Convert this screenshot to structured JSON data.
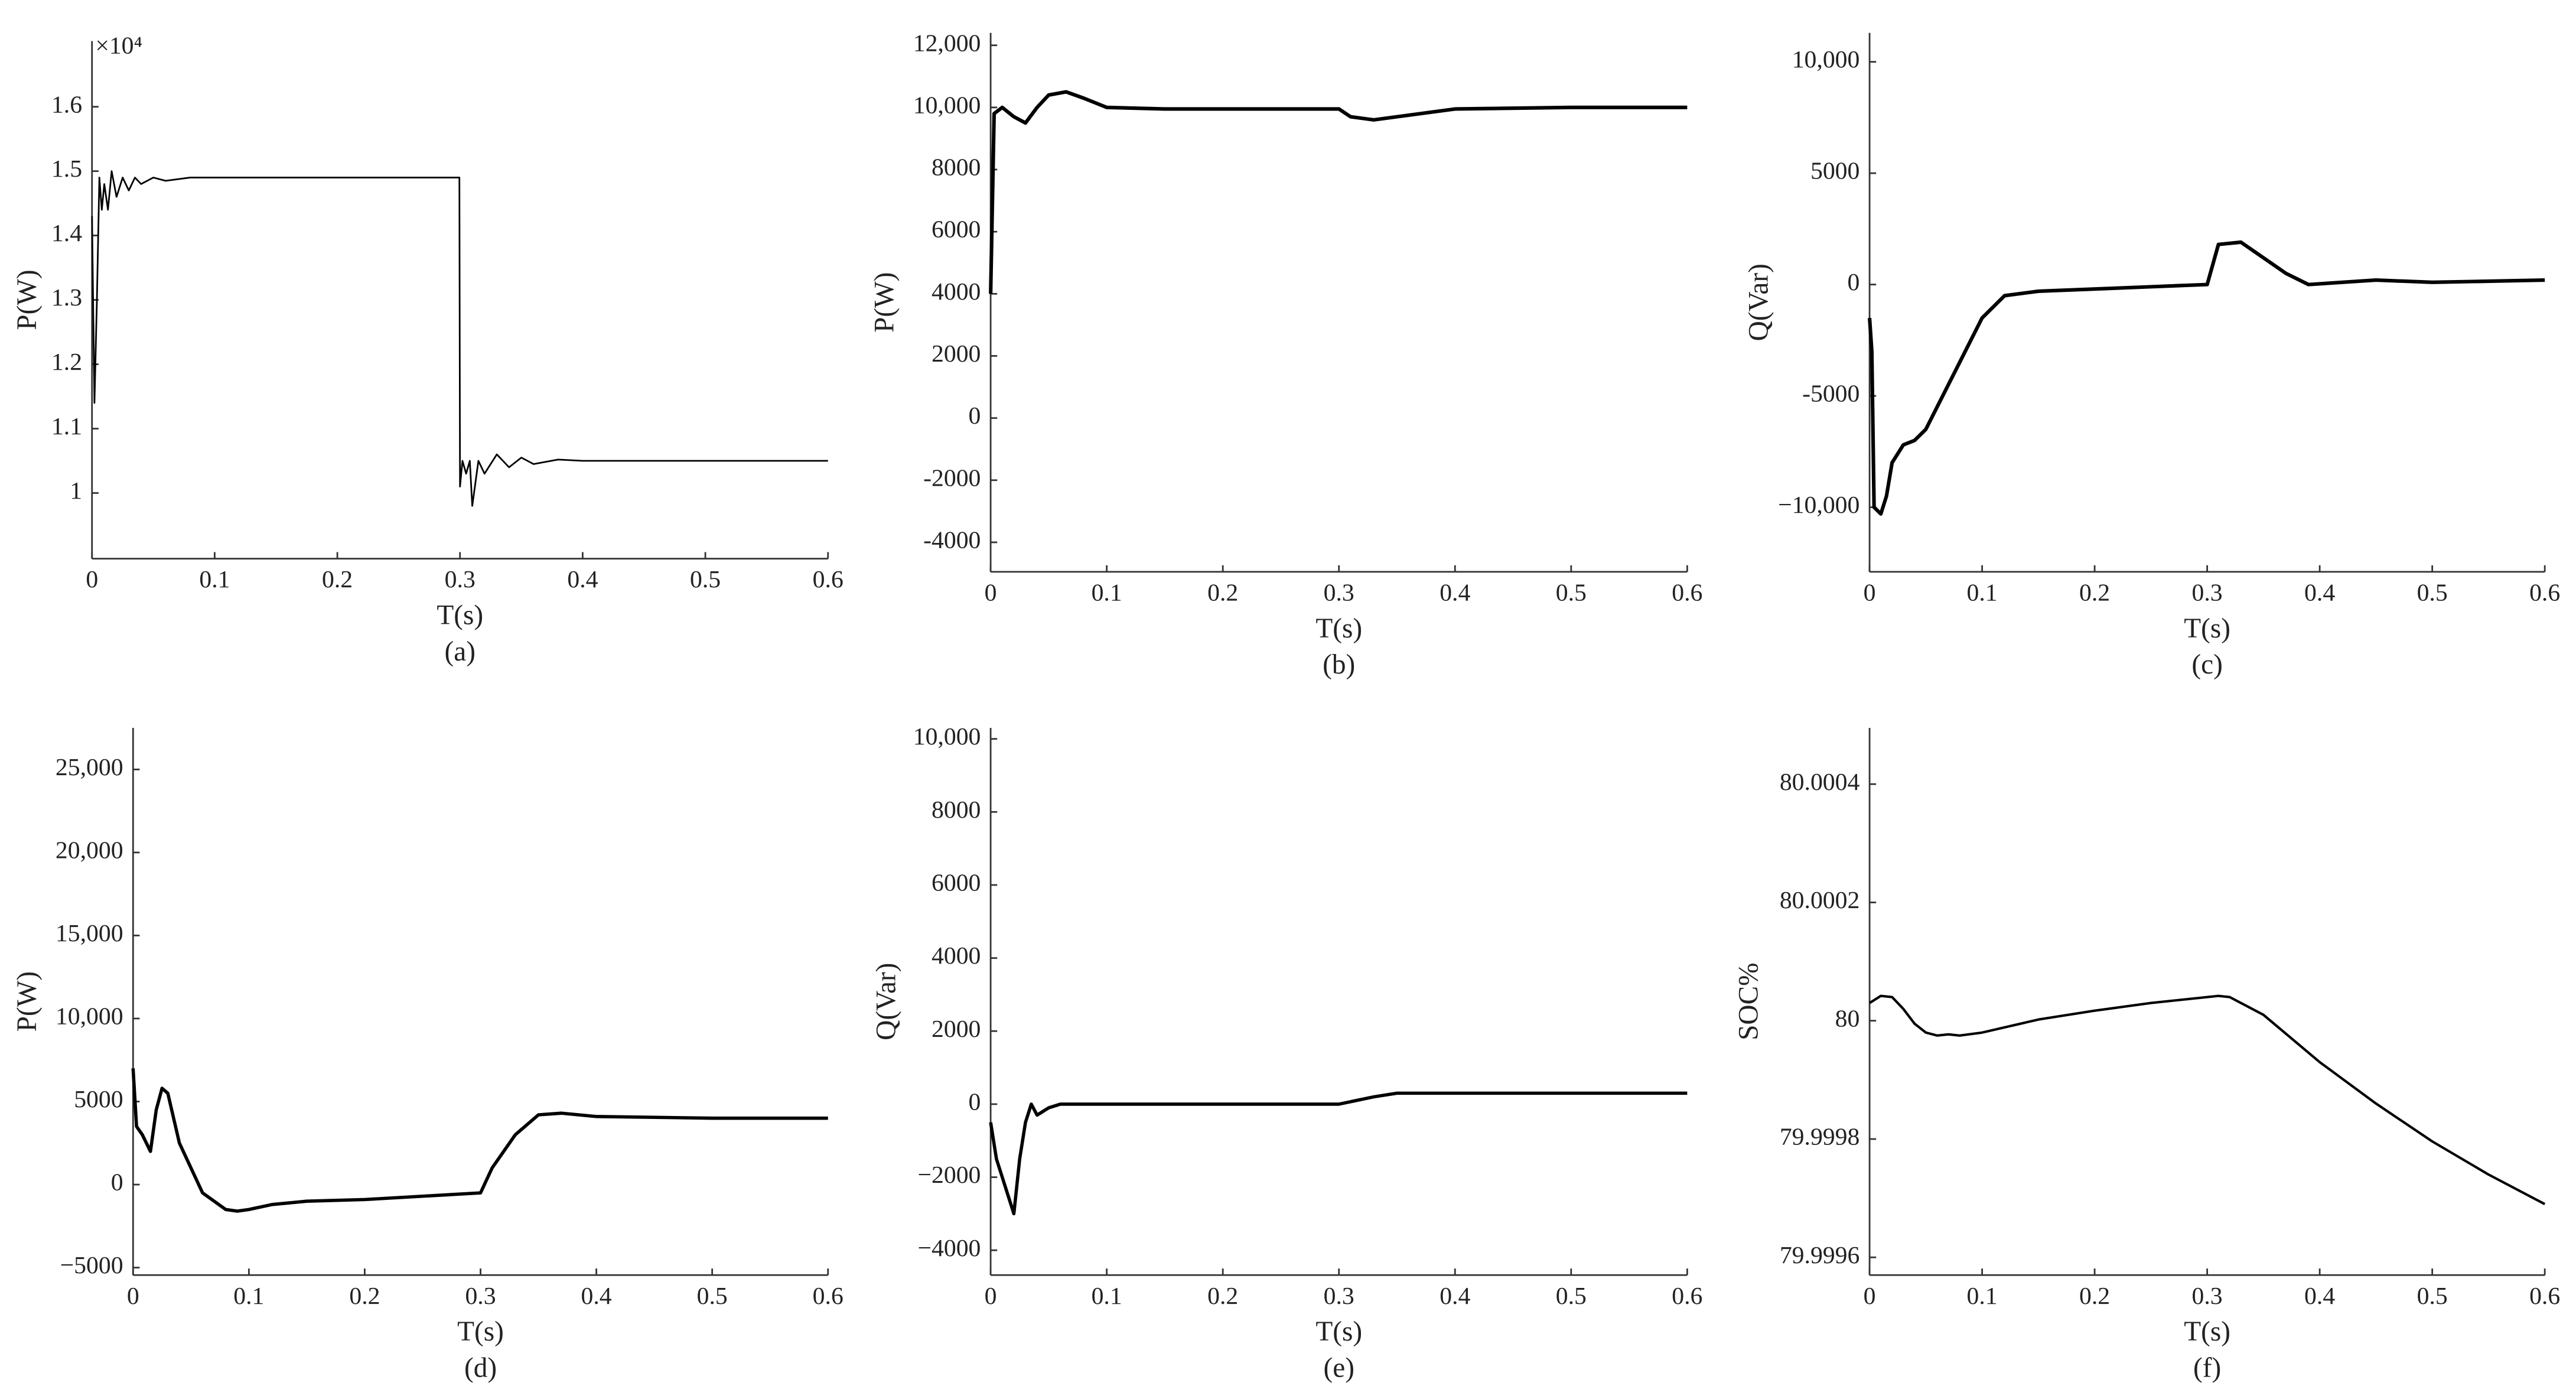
{
  "chart_data": [
    {
      "type": "line",
      "caption": "(a)",
      "x_label": "T(s)",
      "y_label": "P(W)",
      "multiplier": "×10⁴",
      "color": "#000000",
      "x": [
        0,
        0.002,
        0.004,
        0.006,
        0.008,
        0.01,
        0.013,
        0.016,
        0.02,
        0.025,
        0.03,
        0.035,
        0.04,
        0.05,
        0.06,
        0.08,
        0.1,
        0.2,
        0.2995,
        0.3,
        0.302,
        0.305,
        0.308,
        0.31,
        0.315,
        0.32,
        0.33,
        0.34,
        0.35,
        0.36,
        0.38,
        0.4,
        0.5,
        0.6
      ],
      "values": [
        1.43,
        1.14,
        1.3,
        1.49,
        1.44,
        1.48,
        1.44,
        1.5,
        1.46,
        1.49,
        1.47,
        1.49,
        1.48,
        1.49,
        1.485,
        1.49,
        1.49,
        1.49,
        1.49,
        1.01,
        1.05,
        1.03,
        1.05,
        0.98,
        1.05,
        1.03,
        1.06,
        1.04,
        1.055,
        1.045,
        1.052,
        1.05,
        1.05,
        1.05
      ],
      "xlim": [
        0,
        0.6
      ],
      "xticks": [
        0,
        0.1,
        0.2,
        0.3,
        0.4,
        0.5,
        0.6
      ],
      "ylim": [
        0.898,
        1.702
      ],
      "yticks": [
        1,
        1.1,
        1.2,
        1.3,
        1.4,
        1.5,
        1.6
      ]
    },
    {
      "type": "line",
      "caption": "(b)",
      "x_label": "T(s)",
      "y_label": "P(W)",
      "color": "#000000",
      "x": [
        0,
        0.003,
        0.01,
        0.02,
        0.03,
        0.04,
        0.05,
        0.065,
        0.08,
        0.1,
        0.15,
        0.2,
        0.3,
        0.31,
        0.33,
        0.35,
        0.4,
        0.5,
        0.6
      ],
      "values": [
        4000,
        9800,
        10000,
        9700,
        9500,
        10000,
        10400,
        10500,
        10300,
        10000,
        9950,
        9950,
        9950,
        9700,
        9600,
        9700,
        9950,
        10000,
        10000
      ],
      "xlim": [
        0,
        0.6
      ],
      "xticks": [
        0,
        0.1,
        0.2,
        0.3,
        0.4,
        0.5,
        0.6
      ],
      "ylim": [
        -4950,
        12400
      ],
      "yticks": [
        -4000,
        -2000,
        0,
        2000,
        4000,
        6000,
        8000,
        {
          "value": 10000,
          "label": "10,000"
        },
        {
          "value": 12000,
          "label": "12,000"
        }
      ]
    },
    {
      "type": "line",
      "caption": "(c)",
      "x_label": "T(s)",
      "y_label": "Q(Var)",
      "color": "#000000",
      "x": [
        0,
        0.002,
        0.004,
        0.01,
        0.015,
        0.02,
        0.03,
        0.04,
        0.05,
        0.06,
        0.08,
        0.1,
        0.12,
        0.15,
        0.2,
        0.25,
        0.3,
        0.31,
        0.33,
        0.35,
        0.37,
        0.39,
        0.45,
        0.5,
        0.6
      ],
      "values": [
        -1500,
        -3000,
        -10000,
        -10300,
        -9500,
        -8000,
        -7200,
        -7000,
        -6500,
        -5500,
        -3500,
        -1500,
        -500,
        -300,
        -200,
        -100,
        0,
        1800,
        1900,
        1200,
        500,
        0,
        200,
        100,
        200
      ],
      "xlim": [
        0,
        0.6
      ],
      "xticks": [
        0,
        0.1,
        0.2,
        0.3,
        0.4,
        0.5,
        0.6
      ],
      "ylim": [
        -12900,
        11300
      ],
      "yticks": [
        {
          "value": -10000,
          "label": "−10,000"
        },
        -5000,
        0,
        5000,
        {
          "value": 10000,
          "label": "10,000"
        }
      ]
    },
    {
      "type": "line",
      "caption": "(d)",
      "x_label": "T(s)",
      "y_label": "P(W)",
      "color": "#000000",
      "x": [
        0,
        0.003,
        0.008,
        0.015,
        0.02,
        0.025,
        0.03,
        0.04,
        0.06,
        0.08,
        0.09,
        0.1,
        0.12,
        0.15,
        0.2,
        0.25,
        0.3,
        0.31,
        0.33,
        0.35,
        0.37,
        0.4,
        0.5,
        0.6
      ],
      "values": [
        7000,
        3500,
        3000,
        2000,
        4500,
        5800,
        5500,
        2500,
        -500,
        -1500,
        -1600,
        -1500,
        -1200,
        -1000,
        -900,
        -700,
        -500,
        1000,
        3000,
        4200,
        4300,
        4100,
        4000,
        4000
      ],
      "xlim": [
        0,
        0.6
      ],
      "xticks": [
        0,
        0.1,
        0.2,
        0.3,
        0.4,
        0.5,
        0.6
      ],
      "ylim": [
        -5450,
        27500
      ],
      "yticks": [
        {
          "value": -5000,
          "label": "−5000"
        },
        0,
        5000,
        {
          "value": 10000,
          "label": "10,000"
        },
        {
          "value": 15000,
          "label": "15,000"
        },
        {
          "value": 20000,
          "label": "20,000"
        },
        {
          "value": 25000,
          "label": "25,000"
        }
      ]
    },
    {
      "type": "line",
      "caption": "(e)",
      "x_label": "T(s)",
      "y_label": "Q(Var)",
      "color": "#000000",
      "x": [
        0,
        0.005,
        0.01,
        0.015,
        0.02,
        0.025,
        0.03,
        0.035,
        0.04,
        0.05,
        0.06,
        0.1,
        0.2,
        0.3,
        0.33,
        0.35,
        0.4,
        0.5,
        0.6
      ],
      "values": [
        -500,
        -1500,
        -2000,
        -2500,
        -3000,
        -1500,
        -500,
        0,
        -300,
        -100,
        0,
        0,
        0,
        0,
        200,
        300,
        300,
        300,
        300
      ],
      "xlim": [
        0,
        0.6
      ],
      "xticks": [
        0,
        0.1,
        0.2,
        0.3,
        0.4,
        0.5,
        0.6
      ],
      "ylim": [
        -4680,
        10300
      ],
      "yticks": [
        {
          "value": -4000,
          "label": "−4000"
        },
        {
          "value": -2000,
          "label": "−2000"
        },
        0,
        2000,
        4000,
        6000,
        8000,
        {
          "value": 10000,
          "label": "10,000"
        }
      ]
    },
    {
      "type": "line",
      "caption": "(f)",
      "x_label": "T(s)",
      "y_label": "SOC%",
      "color": "#000000",
      "x": [
        0,
        0.01,
        0.02,
        0.03,
        0.04,
        0.05,
        0.06,
        0.07,
        0.08,
        0.1,
        0.15,
        0.2,
        0.25,
        0.3,
        0.31,
        0.32,
        0.35,
        0.4,
        0.45,
        0.5,
        0.55,
        0.6
      ],
      "values": [
        80.00003,
        80.000042,
        80.00004,
        80.00002,
        79.999995,
        79.99998,
        79.999975,
        79.999977,
        79.999975,
        79.99998,
        80.000002,
        80.000017,
        80.00003,
        80.00004,
        80.000042,
        80.00004,
        80.00001,
        79.99993,
        79.99986,
        79.999796,
        79.99974,
        79.99969
      ],
      "xlim": [
        0,
        0.6
      ],
      "xticks": [
        0,
        0.1,
        0.2,
        0.3,
        0.4,
        0.5,
        0.6
      ],
      "ylim": [
        79.99957,
        80.000495
      ],
      "yticks": [
        79.9996,
        79.9998,
        80,
        80.0002,
        80.0004
      ]
    }
  ]
}
